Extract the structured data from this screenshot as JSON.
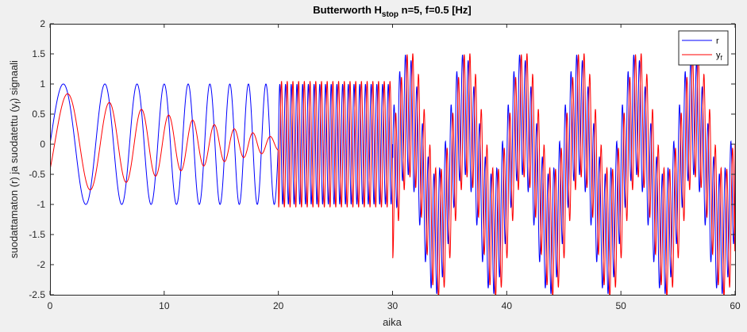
{
  "chart_data": {
    "type": "line",
    "title": "Butterworth H",
    "title_subscript": "stop",
    "title_suffix": " n=5, f=0.5 [Hz]",
    "xlabel": "aika",
    "ylabel": "suodattamaton (r) ja suodatettu (y",
    "ylabel_subscript": "f",
    "ylabel_suffix": ") signaali",
    "xlim": [
      0,
      60
    ],
    "ylim": [
      -2.5,
      2
    ],
    "xticks": [
      0,
      10,
      20,
      30,
      40,
      50,
      60
    ],
    "xtick_labels": [
      "0",
      "10",
      "20",
      "30",
      "40",
      "50",
      "60"
    ],
    "yticks": [
      -2.5,
      -2,
      -1.5,
      -1,
      -0.5,
      0,
      0.5,
      1,
      1.5,
      2
    ],
    "ytick_labels": [
      "-2.5",
      "-2",
      "-1.5",
      "-1",
      "-0.5",
      "0",
      "0.5",
      "1",
      "1.5",
      "2"
    ],
    "grid": false,
    "legend_position": "top-right",
    "sample_step": 0.02,
    "series": [
      {
        "name": "r",
        "label_sub": "",
        "color": "#0000ff",
        "segments": [
          {
            "t_start": 0,
            "t_end": 20,
            "components": [
              {
                "amp": 1.0,
                "freq_hz": 0.2,
                "freq_end_hz": 0.7
              }
            ]
          },
          {
            "t_start": 20,
            "t_end": 30,
            "components": [
              {
                "amp": 1.0,
                "freq_hz": 2.0
              }
            ]
          },
          {
            "t_start": 30,
            "t_end": 60,
            "components": [
              {
                "amp": 1.0,
                "freq_hz": 2.0
              },
              {
                "amp": 1.0,
                "freq_hz": 0.2
              },
              {
                "amp": -0.5,
                "freq_hz": 0.0
              }
            ]
          }
        ]
      },
      {
        "name": "y",
        "label_sub": "f",
        "color": "#ff0000",
        "segments": [
          {
            "t_start": 0,
            "t_end": 20,
            "components": [
              {
                "amp": 0.9,
                "amp_end": 0.1,
                "freq_hz": 0.2,
                "freq_end_hz": 0.7,
                "delay_s": 0.4
              }
            ]
          },
          {
            "t_start": 20,
            "t_end": 30,
            "components": [
              {
                "amp": 1.05,
                "freq_hz": 2.0,
                "delay_s": 0.15
              }
            ]
          },
          {
            "t_start": 30,
            "t_end": 60,
            "components": [
              {
                "amp": 1.05,
                "freq_hz": 2.0,
                "delay_s": 0.15
              },
              {
                "amp": 1.0,
                "freq_hz": 0.2,
                "delay_s": 0.3
              },
              {
                "amp": -0.5,
                "freq_hz": 0.0
              }
            ]
          }
        ]
      }
    ]
  }
}
